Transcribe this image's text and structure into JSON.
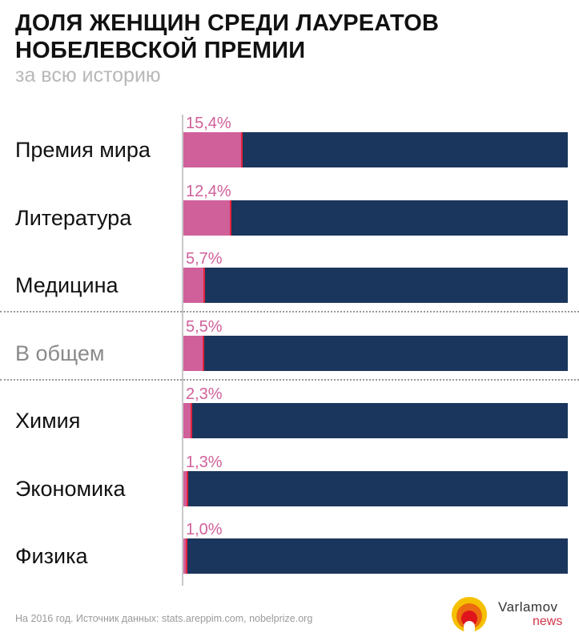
{
  "title": "ДОЛЯ ЖЕНЩИН СРЕДИ ЛАУРЕАТОВ НОБЕЛЕВСКОЙ ПРЕМИИ",
  "title_line1": "ДОЛЯ ЖЕНЩИН СРЕДИ ЛАУРЕАТОВ",
  "title_line2": "НОБЕЛЕВСКОЙ ПРЕМИИ",
  "subtitle": "за всю историю",
  "footer": "На 2016 год. Источник данных: stats.areppim.com, nobelprize.org",
  "brand": {
    "name": "Varlamov",
    "sub": "news"
  },
  "colors": {
    "women": "#d0609a",
    "rest": "#1b365d"
  },
  "chart_data": {
    "type": "bar",
    "orientation": "horizontal-stacked-100",
    "title": "ДОЛЯ ЖЕНЩИН СРЕДИ ЛАУРЕАТОВ НОБЕЛЕВСКОЙ ПРЕМИИ",
    "categories": [
      "Премия мира",
      "Литература",
      "Медицина",
      "В общем",
      "Химия",
      "Экономика",
      "Физика"
    ],
    "values": [
      15.4,
      12.4,
      5.7,
      5.5,
      2.3,
      1.3,
      1.0
    ],
    "labels": [
      "15,4%",
      "12,4%",
      "5,7%",
      "5,5%",
      "2,3%",
      "1,3%",
      "1,0%"
    ],
    "muted_category": "В общем",
    "xlim": [
      0,
      100
    ]
  }
}
